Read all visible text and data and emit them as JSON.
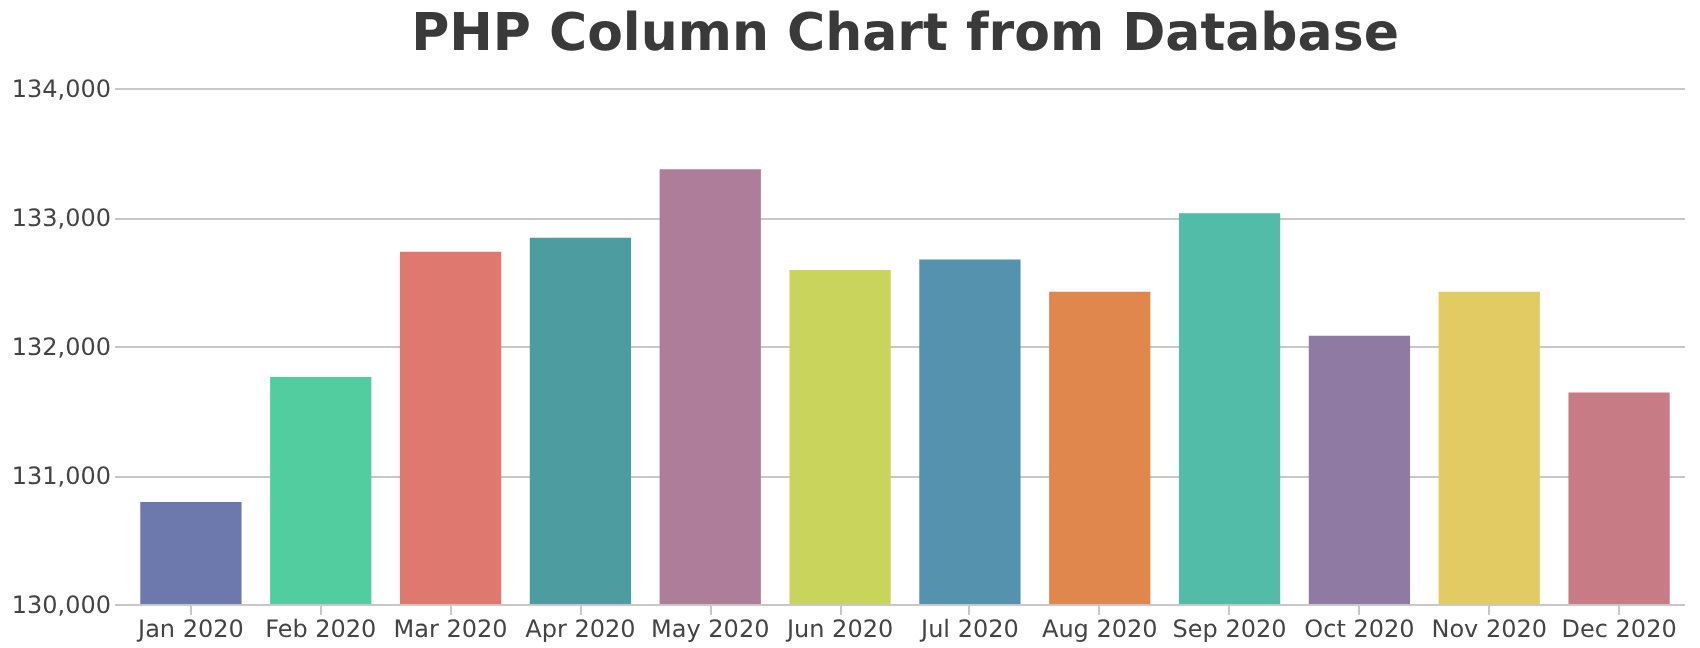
{
  "chart_data": {
    "type": "bar",
    "title": "PHP Column Chart from Database",
    "categories": [
      "Jan 2020",
      "Feb 2020",
      "Mar 2020",
      "Apr 2020",
      "May 2020",
      "Jun 2020",
      "Jul 2020",
      "Aug 2020",
      "Sep 2020",
      "Oct 2020",
      "Nov 2020",
      "Dec 2020"
    ],
    "values": [
      130790,
      131760,
      132730,
      132840,
      133370,
      132590,
      132670,
      132420,
      133030,
      132080,
      132420,
      131640
    ],
    "colors": [
      "#6d78ad",
      "#51cda0",
      "#df7970",
      "#4c9ca0",
      "#ae7d99",
      "#c9d45c",
      "#5592ad",
      "#df874d",
      "#52bca8",
      "#8e7aa3",
      "#e3cb64",
      "#c77b85"
    ],
    "ylim": [
      130000,
      134000
    ],
    "yticks": [
      {
        "value": 130000,
        "label": "130,000"
      },
      {
        "value": 131000,
        "label": "131,000"
      },
      {
        "value": 132000,
        "label": "132,000"
      },
      {
        "value": 133000,
        "label": "133,000"
      },
      {
        "value": 134000,
        "label": "134,000"
      }
    ],
    "grid": "y"
  }
}
